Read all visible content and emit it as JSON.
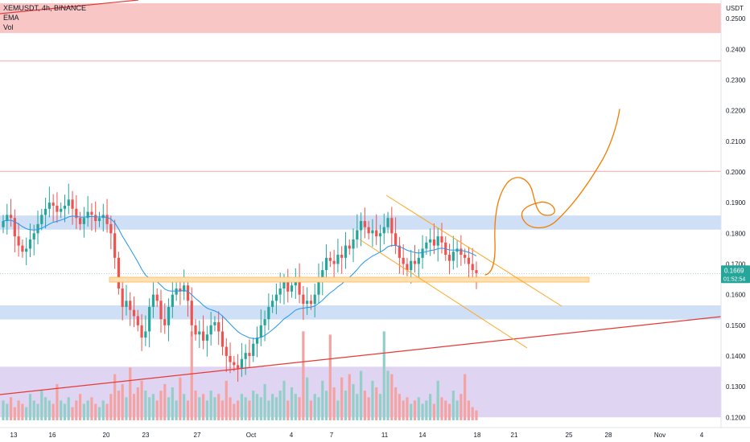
{
  "legend": {
    "symbol": "XEMUSDT, 4h, BINANCE",
    "ema": "EMA",
    "vol": "Vol"
  },
  "chart_data": {
    "type": "candlestick",
    "symbol": "XEMUSDT",
    "timeframe": "4h",
    "exchange": "BINANCE",
    "currency_label": "USDT",
    "y_ticks": [
      "0.2500",
      "0.2400",
      "0.2300",
      "0.2200",
      "0.2100",
      "0.2000",
      "0.1900",
      "0.1800",
      "0.1700",
      "0.1600",
      "0.1500",
      "0.1400",
      "0.1300",
      "0.1200"
    ],
    "x_ticks": [
      "13",
      "16",
      "20",
      "23",
      "27",
      "Oct",
      "4",
      "7",
      "11",
      "14",
      "18",
      "21",
      "25",
      "28",
      "Nov",
      "4"
    ],
    "ylim": [
      0.1185,
      0.2545
    ],
    "last_price": "0.1669",
    "countdown": "01:52:54",
    "closes": [
      0.184,
      0.186,
      0.185,
      0.179,
      0.176,
      0.174,
      0.175,
      0.178,
      0.18,
      0.183,
      0.186,
      0.188,
      0.19,
      0.189,
      0.187,
      0.188,
      0.189,
      0.191,
      0.188,
      0.185,
      0.183,
      0.185,
      0.187,
      0.186,
      0.184,
      0.185,
      0.186,
      0.183,
      0.18,
      0.172,
      0.162,
      0.156,
      0.158,
      0.155,
      0.153,
      0.15,
      0.146,
      0.148,
      0.156,
      0.16,
      0.158,
      0.152,
      0.15,
      0.156,
      0.16,
      0.162,
      0.161,
      0.163,
      0.158,
      0.15,
      0.147,
      0.148,
      0.145,
      0.147,
      0.15,
      0.151,
      0.148,
      0.143,
      0.14,
      0.138,
      0.137,
      0.136,
      0.139,
      0.141,
      0.14,
      0.144,
      0.146,
      0.15,
      0.152,
      0.156,
      0.158,
      0.16,
      0.162,
      0.164,
      0.161,
      0.163,
      0.165,
      0.16,
      0.157,
      0.158,
      0.157,
      0.16,
      0.165,
      0.168,
      0.172,
      0.171,
      0.17,
      0.173,
      0.172,
      0.176,
      0.175,
      0.178,
      0.181,
      0.184,
      0.182,
      0.18,
      0.181,
      0.179,
      0.18,
      0.182,
      0.185,
      0.18,
      0.176,
      0.172,
      0.17,
      0.168,
      0.171,
      0.17,
      0.172,
      0.175,
      0.177,
      0.178,
      0.176,
      0.179,
      0.177,
      0.173,
      0.171,
      0.174,
      0.175,
      0.173,
      0.172,
      0.17,
      0.168,
      0.167
    ],
    "ema_period": 20,
    "volumes": [
      6,
      5,
      7,
      4,
      6,
      5,
      4,
      8,
      6,
      5,
      9,
      7,
      6,
      5,
      11,
      6,
      5,
      7,
      4,
      6,
      8,
      5,
      6,
      7,
      5,
      4,
      6,
      5,
      8,
      14,
      9,
      11,
      7,
      16,
      8,
      10,
      12,
      9,
      7,
      8,
      6,
      9,
      11,
      7,
      10,
      6,
      13,
      8,
      6,
      27,
      9,
      7,
      8,
      6,
      9,
      7,
      8,
      6,
      12,
      7,
      5,
      6,
      8,
      7,
      6,
      9,
      8,
      7,
      11,
      6,
      8,
      7,
      9,
      12,
      6,
      10,
      8,
      7,
      27,
      13,
      6,
      8,
      7,
      12,
      9,
      26,
      10,
      6,
      13,
      9,
      14,
      11,
      8,
      15,
      9,
      7,
      12,
      10,
      8,
      27,
      15,
      14,
      10,
      8,
      6,
      7,
      5,
      6,
      7,
      5,
      6,
      8,
      5,
      12,
      7,
      6,
      5,
      9,
      6,
      8,
      14,
      6,
      4,
      3
    ]
  },
  "overlays": {
    "horizontal_lines": [
      {
        "price": 0.2362,
        "color": "#f7a8a8"
      },
      {
        "price": 0.2002,
        "color": "#f7a8a8"
      }
    ],
    "zones": [
      {
        "from": 0.2453,
        "to": 0.255,
        "color": "#f8bcbc",
        "label": "resistance zone"
      },
      {
        "from": 0.1812,
        "to": 0.1858,
        "color": "#c5d9f5",
        "label": "upper blue zone"
      },
      {
        "from": 0.1519,
        "to": 0.1565,
        "color": "#c5d9f5",
        "label": "lower blue zone"
      },
      {
        "from": 0.12,
        "to": 0.1365,
        "color": "#d9ccef",
        "label": "bottom purple zone"
      }
    ]
  },
  "colors": {
    "up": "#26a69a",
    "down": "#ef5350",
    "ema": "#2196f3",
    "vol_up": "#92cfc9",
    "vol_down": "#f4a3a2",
    "drawing": "#f57c00",
    "trendline": "#e53935",
    "price_label": "#26a69a"
  }
}
